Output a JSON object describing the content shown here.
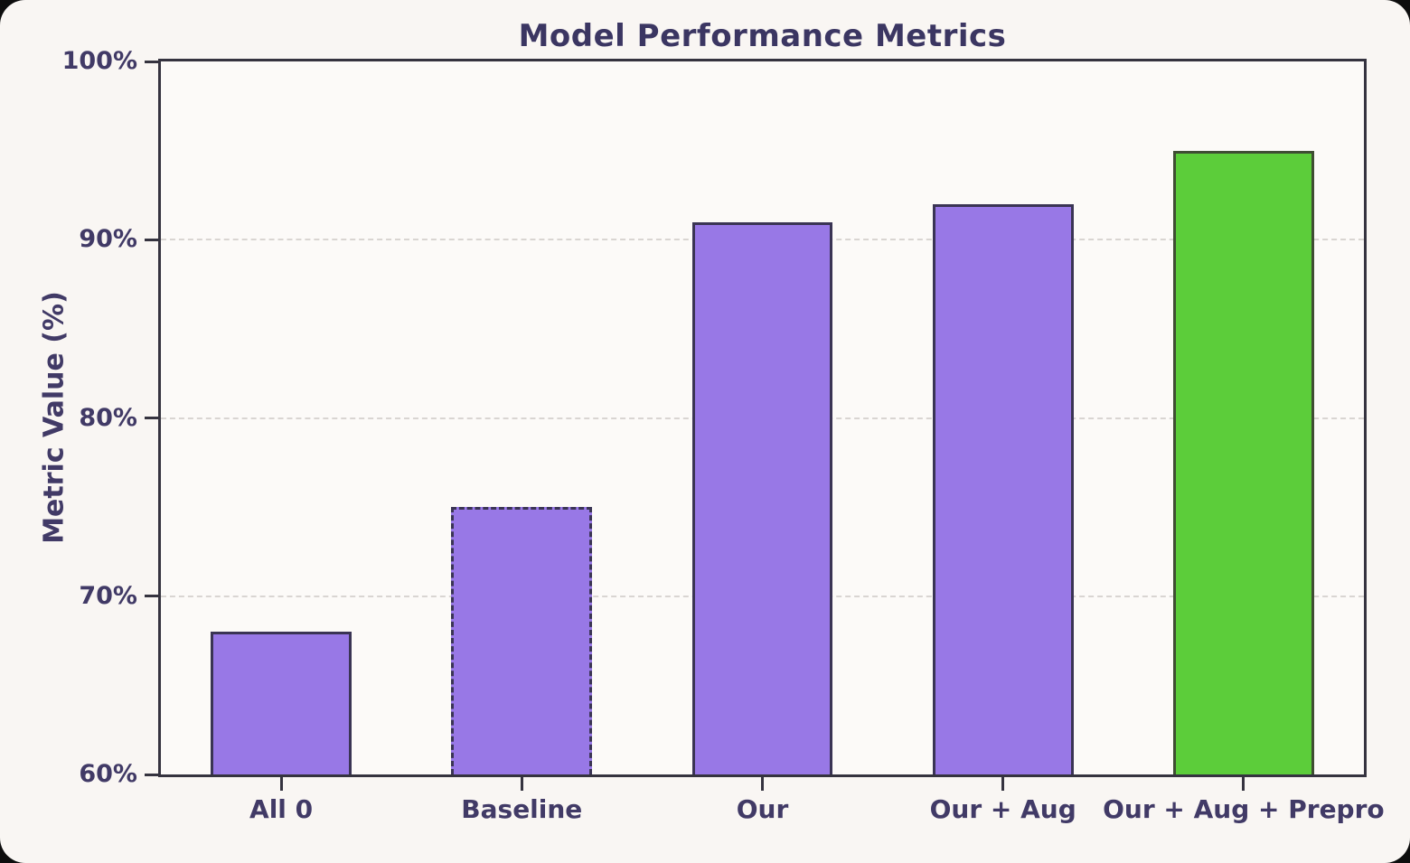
{
  "title": "Model Performance Metrics",
  "colors": {
    "figure_bg": "#f9f6f3",
    "plot_bg": "#fcfaf8",
    "bar_purple": "#9878e6",
    "bar_green": "#5ccd3a",
    "purple_edge": "#3a3454",
    "green_edge": "#3f4d33",
    "text": "#413a66",
    "grid": "#d9d5d2",
    "spine": "#35333f"
  },
  "chart_data": {
    "type": "bar",
    "title": "Model Performance Metrics",
    "xlabel": "",
    "ylabel": "Metric Value (%)",
    "categories": [
      "All 0",
      "Baseline",
      "Our",
      "Our + Aug",
      "Our + Aug + Prepro"
    ],
    "values": [
      68,
      75,
      91,
      92,
      95
    ],
    "ylim": [
      60,
      100
    ],
    "yticks": [
      60,
      70,
      80,
      90,
      100
    ],
    "ytick_labels": [
      "60%",
      "70%",
      "80%",
      "90%",
      "100%"
    ],
    "grid": "horizontal dashed gridlines at interior y-ticks",
    "legend_position": "none",
    "bar_width_fraction": 0.585,
    "bar_styles": [
      {
        "fill": "#9878e6",
        "edge": "#3a3454",
        "border": "solid"
      },
      {
        "fill": "#9878e6",
        "edge": "#3a3454",
        "border": "dashed"
      },
      {
        "fill": "#9878e6",
        "edge": "#3a3454",
        "border": "solid"
      },
      {
        "fill": "#9878e6",
        "edge": "#3a3454",
        "border": "solid"
      },
      {
        "fill": "#5ccd3a",
        "edge": "#3f4d33",
        "border": "solid"
      }
    ]
  }
}
